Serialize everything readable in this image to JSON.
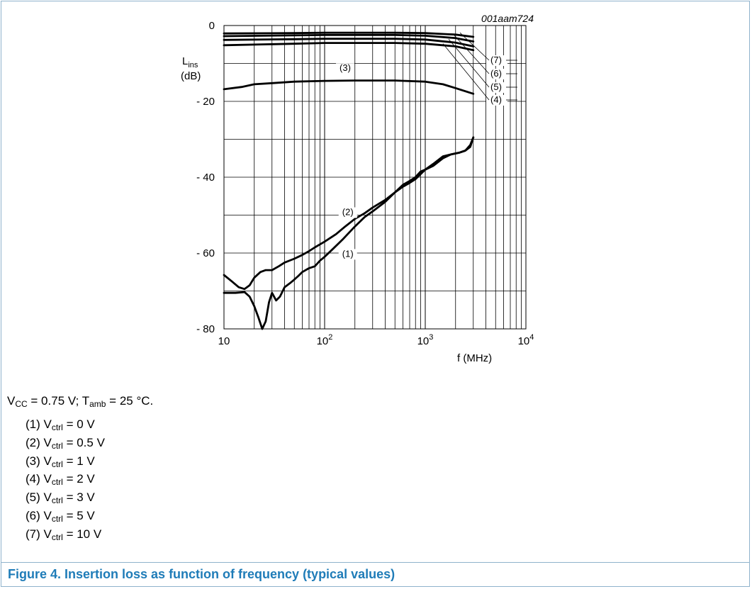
{
  "figure": {
    "code": "001aam724",
    "caption": "Figure 4.  Insertion loss as function of frequency (typical values)"
  },
  "conditions": {
    "vcc": "V",
    "vcc_sub": "CC",
    "vcc_rest": " = 0.75 V; T",
    "tamb_sub": "amb",
    "tamb_rest": " = 25 °C."
  },
  "legend": [
    {
      "tag": "(1)",
      "pre": " V",
      "sub": "ctrl",
      "post": " = 0 V"
    },
    {
      "tag": "(2)",
      "pre": " V",
      "sub": "ctrl",
      "post": " = 0.5 V"
    },
    {
      "tag": "(3)",
      "pre": " V",
      "sub": "ctrl",
      "post": " = 1 V"
    },
    {
      "tag": "(4)",
      "pre": " V",
      "sub": "ctrl",
      "post": " = 2 V"
    },
    {
      "tag": "(5)",
      "pre": " V",
      "sub": "ctrl",
      "post": " = 3 V"
    },
    {
      "tag": "(6)",
      "pre": " V",
      "sub": "ctrl",
      "post": " = 5 V"
    },
    {
      "tag": "(7)",
      "pre": " V",
      "sub": "ctrl",
      "post": " = 10 V"
    }
  ],
  "chart_data": {
    "type": "line",
    "x_scale": "log",
    "xlim": [
      10,
      10000
    ],
    "ylim": [
      -80,
      0
    ],
    "xlabel": "f (MHz)",
    "ylabel_main": "L",
    "ylabel_sub": "ins",
    "ylabel_unit": "(dB)",
    "x_ticks": [
      {
        "value": 10,
        "base": "10",
        "exp": ""
      },
      {
        "value": 100,
        "base": "10",
        "exp": "2"
      },
      {
        "value": 1000,
        "base": "10",
        "exp": "3"
      },
      {
        "value": 10000,
        "base": "10",
        "exp": "4"
      }
    ],
    "y_ticks": [
      {
        "value": 0,
        "label": "0"
      },
      {
        "value": -20,
        "label": "- 20"
      },
      {
        "value": -40,
        "label": "- 40"
      },
      {
        "value": -60,
        "label": "- 60"
      },
      {
        "value": -80,
        "label": "- 80"
      }
    ],
    "grid": true,
    "series": [
      {
        "name": "(1)",
        "label_at": [
          170,
          -61
        ],
        "points": [
          [
            10,
            -70.5
          ],
          [
            13,
            -70.5
          ],
          [
            16,
            -70.3
          ],
          [
            18,
            -71.5
          ],
          [
            20,
            -74
          ],
          [
            22,
            -77
          ],
          [
            24,
            -80
          ],
          [
            26,
            -78
          ],
          [
            28,
            -73
          ],
          [
            30,
            -70.5
          ],
          [
            33,
            -72.5
          ],
          [
            36,
            -71.5
          ],
          [
            40,
            -69
          ],
          [
            45,
            -68
          ],
          [
            50,
            -67
          ],
          [
            55,
            -66
          ],
          [
            60,
            -65
          ],
          [
            70,
            -64
          ],
          [
            80,
            -63.5
          ],
          [
            90,
            -62
          ],
          [
            100,
            -61
          ],
          [
            120,
            -59
          ],
          [
            150,
            -56.5
          ],
          [
            200,
            -53
          ],
          [
            250,
            -50.5
          ],
          [
            300,
            -49
          ],
          [
            400,
            -46.5
          ],
          [
            500,
            -44
          ],
          [
            600,
            -42
          ],
          [
            700,
            -41
          ],
          [
            800,
            -40
          ],
          [
            900,
            -38.5
          ],
          [
            1000,
            -38
          ],
          [
            1200,
            -36.5
          ],
          [
            1500,
            -34.5
          ],
          [
            1800,
            -34
          ],
          [
            2200,
            -33.5
          ],
          [
            2500,
            -33
          ],
          [
            2800,
            -31.5
          ],
          [
            3000,
            -29.5
          ]
        ]
      },
      {
        "name": "(2)",
        "label_at": [
          170,
          -50
        ],
        "points": [
          [
            10,
            -65.8
          ],
          [
            12,
            -67.5
          ],
          [
            14,
            -69
          ],
          [
            16,
            -69.5
          ],
          [
            18,
            -68.5
          ],
          [
            20,
            -66.5
          ],
          [
            23,
            -65
          ],
          [
            26,
            -64.5
          ],
          [
            30,
            -64.5
          ],
          [
            35,
            -63.5
          ],
          [
            40,
            -62.5
          ],
          [
            50,
            -61.5
          ],
          [
            60,
            -60.5
          ],
          [
            70,
            -59.5
          ],
          [
            80,
            -58.5
          ],
          [
            100,
            -57
          ],
          [
            130,
            -55
          ],
          [
            160,
            -53
          ],
          [
            200,
            -51
          ],
          [
            250,
            -49.5
          ],
          [
            300,
            -48
          ],
          [
            400,
            -46
          ],
          [
            500,
            -44
          ],
          [
            600,
            -42.5
          ],
          [
            700,
            -41.5
          ],
          [
            800,
            -40.5
          ],
          [
            1000,
            -38
          ],
          [
            1200,
            -37
          ],
          [
            1500,
            -35
          ],
          [
            1800,
            -34
          ],
          [
            2200,
            -33.5
          ],
          [
            2500,
            -33
          ],
          [
            2800,
            -32
          ],
          [
            3000,
            -29.5
          ]
        ]
      },
      {
        "name": "(3)",
        "label_at": [
          160,
          -12
        ],
        "points": [
          [
            10,
            -16.8
          ],
          [
            15,
            -16.2
          ],
          [
            20,
            -15.5
          ],
          [
            30,
            -15.2
          ],
          [
            50,
            -14.8
          ],
          [
            100,
            -14.6
          ],
          [
            200,
            -14.5
          ],
          [
            500,
            -14.5
          ],
          [
            1000,
            -14.8
          ],
          [
            1500,
            -15.5
          ],
          [
            2000,
            -16.5
          ],
          [
            3000,
            -18
          ]
        ]
      },
      {
        "name": "(4)",
        "label_at": [
          4500,
          -20
        ],
        "points": [
          [
            10,
            -5.2
          ],
          [
            50,
            -4.8
          ],
          [
            100,
            -4.6
          ],
          [
            500,
            -4.6
          ],
          [
            1000,
            -4.8
          ],
          [
            2000,
            -5.5
          ],
          [
            3000,
            -6.5
          ]
        ]
      },
      {
        "name": "(5)",
        "label_at": [
          4500,
          -20
        ],
        "points": [
          [
            10,
            -3.8
          ],
          [
            50,
            -3.6
          ],
          [
            100,
            -3.5
          ],
          [
            500,
            -3.5
          ],
          [
            1000,
            -3.7
          ],
          [
            2000,
            -4.5
          ],
          [
            3000,
            -5.5
          ]
        ]
      },
      {
        "name": "(6)",
        "label_at": [
          4500,
          -20
        ],
        "points": [
          [
            10,
            -2.8
          ],
          [
            50,
            -2.6
          ],
          [
            100,
            -2.5
          ],
          [
            500,
            -2.5
          ],
          [
            1000,
            -2.7
          ],
          [
            2000,
            -3.3
          ],
          [
            3000,
            -4.2
          ]
        ]
      },
      {
        "name": "(7)",
        "label_at": [
          4500,
          -20
        ],
        "points": [
          [
            10,
            -2.1
          ],
          [
            50,
            -2
          ],
          [
            100,
            -1.9
          ],
          [
            500,
            -1.9
          ],
          [
            1000,
            -2
          ],
          [
            2000,
            -2.4
          ],
          [
            3000,
            -3
          ]
        ]
      }
    ]
  }
}
